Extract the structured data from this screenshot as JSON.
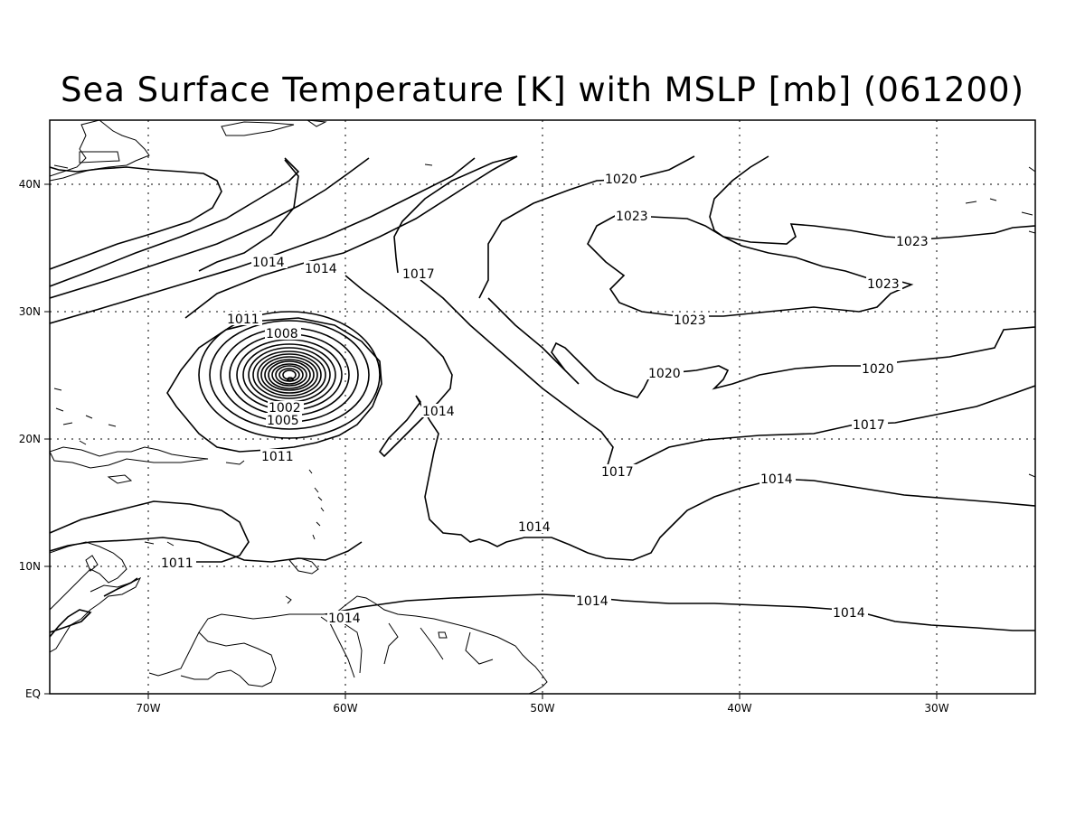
{
  "title": "Sea Surface Temperature [K] with MSLP [mb] (061200)",
  "axes": {
    "lon_ticks": [
      "70W",
      "60W",
      "50W",
      "40W",
      "30W"
    ],
    "lat_ticks": [
      "40N",
      "30N",
      "20N",
      "10N",
      "EQ"
    ],
    "lon_range": [
      -75,
      -25
    ],
    "lat_range": [
      0,
      45
    ]
  },
  "contour_labels": [
    {
      "id": "l1014a",
      "text": "1014"
    },
    {
      "id": "l1014b",
      "text": "1014"
    },
    {
      "id": "l1017a",
      "text": "1017"
    },
    {
      "id": "l1020a",
      "text": "1020"
    },
    {
      "id": "l1023a",
      "text": "1023"
    },
    {
      "id": "l1023b",
      "text": "1023"
    },
    {
      "id": "l1023c",
      "text": "1023"
    },
    {
      "id": "l1023d",
      "text": "1023"
    },
    {
      "id": "l1011a",
      "text": "1011"
    },
    {
      "id": "l1008a",
      "text": "1008"
    },
    {
      "id": "l1020b",
      "text": "1020"
    },
    {
      "id": "l1020c",
      "text": "1020"
    },
    {
      "id": "l1014c",
      "text": "1014"
    },
    {
      "id": "l1002",
      "text": "1002"
    },
    {
      "id": "l1005",
      "text": "1005"
    },
    {
      "id": "l1017b",
      "text": "1017"
    },
    {
      "id": "l1011b",
      "text": "1011"
    },
    {
      "id": "l1014d",
      "text": "1014"
    },
    {
      "id": "l1017c",
      "text": "1017"
    },
    {
      "id": "l1014e",
      "text": "1014"
    },
    {
      "id": "l1011c",
      "text": "1011"
    },
    {
      "id": "l1014f",
      "text": "1014"
    },
    {
      "id": "l1014g",
      "text": "1014"
    },
    {
      "id": "l1014h",
      "text": "1014"
    }
  ]
}
